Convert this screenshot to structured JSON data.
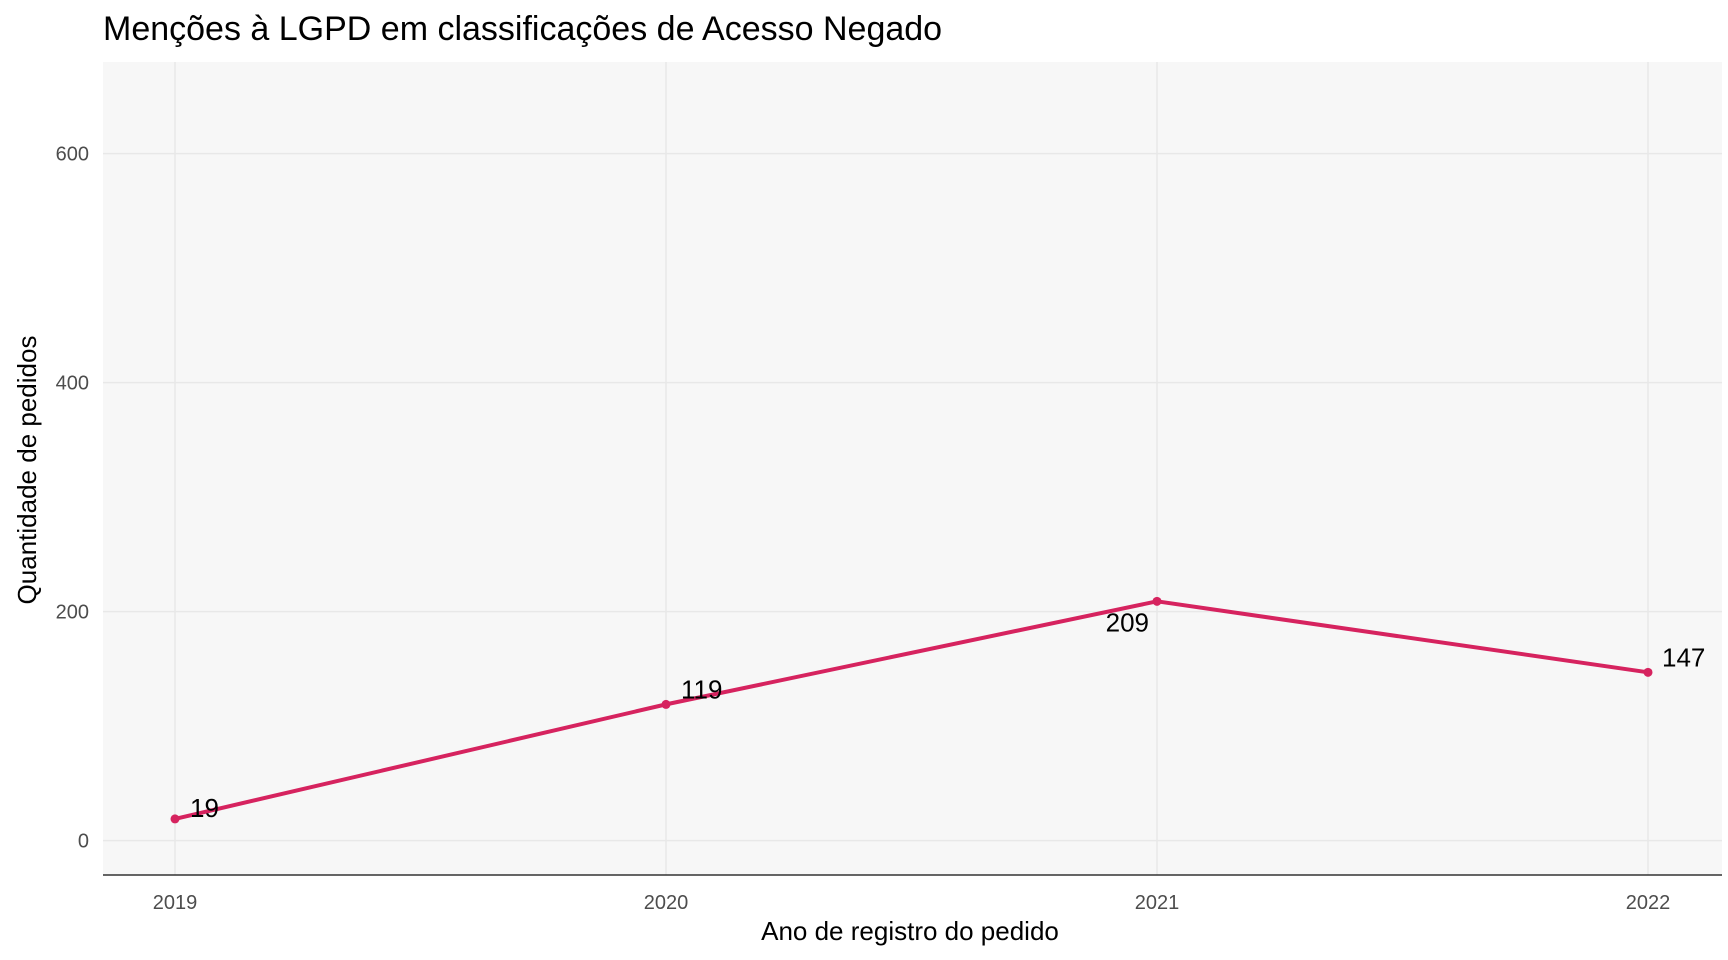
{
  "chart_data": {
    "type": "line",
    "title": "Menções à LGPD em classificações de Acesso Negado",
    "xlabel": "Ano de registro do pedido",
    "ylabel": "Quantidade de pedidos",
    "x": [
      "2019",
      "2020",
      "2021",
      "2022"
    ],
    "series": [
      {
        "values": [
          19,
          119,
          209,
          147
        ],
        "color": "#d6235f"
      }
    ],
    "data_labels": [
      "19",
      "119",
      "209",
      "147"
    ],
    "y_ticks": [
      0,
      200,
      400,
      600
    ],
    "ylim": [
      -30,
      680
    ],
    "grid": true,
    "panel_background": "#f7f7f7",
    "grid_color": "#e8e8e8"
  }
}
